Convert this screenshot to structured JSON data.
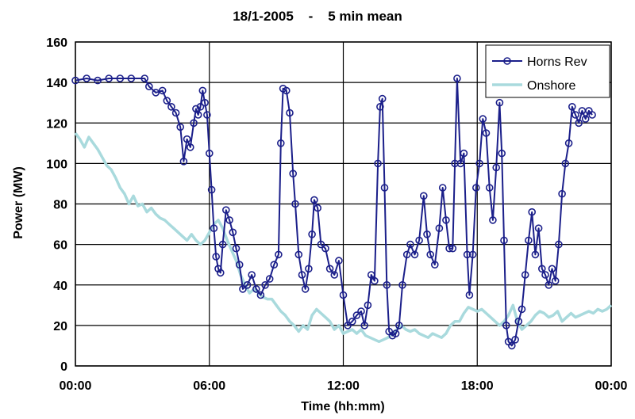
{
  "chart_data": {
    "type": "line",
    "title": "18/1-2005    -    5 min mean",
    "xlabel": "Time (hh:mm)",
    "ylabel": "Power (MW)",
    "xlim": [
      0,
      24
    ],
    "ylim": [
      0,
      160
    ],
    "x_ticks": [
      {
        "value": 0,
        "label": "00:00"
      },
      {
        "value": 6,
        "label": "06:00"
      },
      {
        "value": 12,
        "label": "12:00"
      },
      {
        "value": 18,
        "label": "18:00"
      },
      {
        "value": 24,
        "label": "00:00"
      }
    ],
    "y_ticks": [
      0,
      20,
      40,
      60,
      80,
      100,
      120,
      140,
      160
    ],
    "grid": true,
    "legend_position": "top-right",
    "series": [
      {
        "name": "Horns Rev",
        "color": "#1b1f8a",
        "marker": "circle",
        "points": [
          [
            0.0,
            141
          ],
          [
            0.5,
            142
          ],
          [
            1.0,
            141
          ],
          [
            1.5,
            142
          ],
          [
            2.0,
            142
          ],
          [
            2.5,
            142
          ],
          [
            3.1,
            142
          ],
          [
            3.3,
            138
          ],
          [
            3.6,
            135
          ],
          [
            3.9,
            136
          ],
          [
            4.1,
            131
          ],
          [
            4.3,
            128
          ],
          [
            4.5,
            125
          ],
          [
            4.7,
            118
          ],
          [
            4.85,
            101
          ],
          [
            5.0,
            112
          ],
          [
            5.15,
            108
          ],
          [
            5.3,
            120
          ],
          [
            5.4,
            127
          ],
          [
            5.5,
            124
          ],
          [
            5.6,
            128
          ],
          [
            5.7,
            136
          ],
          [
            5.8,
            130
          ],
          [
            5.9,
            124
          ],
          [
            6.0,
            105
          ],
          [
            6.1,
            87
          ],
          [
            6.2,
            68
          ],
          [
            6.3,
            54
          ],
          [
            6.4,
            48
          ],
          [
            6.5,
            46
          ],
          [
            6.6,
            60
          ],
          [
            6.75,
            77
          ],
          [
            6.9,
            72
          ],
          [
            7.05,
            66
          ],
          [
            7.2,
            58
          ],
          [
            7.35,
            50
          ],
          [
            7.5,
            38
          ],
          [
            7.7,
            40
          ],
          [
            7.9,
            45
          ],
          [
            8.1,
            38
          ],
          [
            8.3,
            35
          ],
          [
            8.5,
            40
          ],
          [
            8.7,
            43
          ],
          [
            8.9,
            50
          ],
          [
            9.1,
            55
          ],
          [
            9.2,
            110
          ],
          [
            9.3,
            137
          ],
          [
            9.45,
            136
          ],
          [
            9.6,
            125
          ],
          [
            9.75,
            95
          ],
          [
            9.85,
            80
          ],
          [
            10.0,
            55
          ],
          [
            10.15,
            45
          ],
          [
            10.3,
            38
          ],
          [
            10.45,
            48
          ],
          [
            10.6,
            65
          ],
          [
            10.7,
            82
          ],
          [
            10.85,
            78
          ],
          [
            11.0,
            60
          ],
          [
            11.2,
            58
          ],
          [
            11.4,
            48
          ],
          [
            11.6,
            45
          ],
          [
            11.8,
            52
          ],
          [
            12.0,
            35
          ],
          [
            12.2,
            20
          ],
          [
            12.4,
            22
          ],
          [
            12.6,
            25
          ],
          [
            12.8,
            27
          ],
          [
            12.95,
            20
          ],
          [
            13.1,
            30
          ],
          [
            13.25,
            45
          ],
          [
            13.4,
            42
          ],
          [
            13.55,
            100
          ],
          [
            13.65,
            128
          ],
          [
            13.75,
            132
          ],
          [
            13.85,
            88
          ],
          [
            13.95,
            40
          ],
          [
            14.05,
            17
          ],
          [
            14.2,
            15
          ],
          [
            14.35,
            16
          ],
          [
            14.5,
            20
          ],
          [
            14.65,
            40
          ],
          [
            14.85,
            55
          ],
          [
            15.0,
            60
          ],
          [
            15.2,
            55
          ],
          [
            15.4,
            62
          ],
          [
            15.6,
            84
          ],
          [
            15.75,
            65
          ],
          [
            15.9,
            55
          ],
          [
            16.1,
            50
          ],
          [
            16.3,
            68
          ],
          [
            16.45,
            88
          ],
          [
            16.6,
            72
          ],
          [
            16.75,
            58
          ],
          [
            16.9,
            58
          ],
          [
            17.0,
            100
          ],
          [
            17.1,
            142
          ],
          [
            17.25,
            100
          ],
          [
            17.4,
            105
          ],
          [
            17.55,
            55
          ],
          [
            17.65,
            35
          ],
          [
            17.8,
            55
          ],
          [
            17.95,
            88
          ],
          [
            18.1,
            100
          ],
          [
            18.25,
            122
          ],
          [
            18.4,
            115
          ],
          [
            18.55,
            88
          ],
          [
            18.7,
            72
          ],
          [
            18.85,
            98
          ],
          [
            19.0,
            130
          ],
          [
            19.1,
            105
          ],
          [
            19.2,
            62
          ],
          [
            19.3,
            20
          ],
          [
            19.4,
            12
          ],
          [
            19.55,
            10
          ],
          [
            19.7,
            13
          ],
          [
            19.85,
            22
          ],
          [
            20.0,
            28
          ],
          [
            20.15,
            45
          ],
          [
            20.3,
            62
          ],
          [
            20.45,
            76
          ],
          [
            20.6,
            55
          ],
          [
            20.75,
            68
          ],
          [
            20.9,
            48
          ],
          [
            21.05,
            45
          ],
          [
            21.2,
            40
          ],
          [
            21.35,
            48
          ],
          [
            21.5,
            42
          ],
          [
            21.65,
            60
          ],
          [
            21.8,
            85
          ],
          [
            21.95,
            100
          ],
          [
            22.1,
            110
          ],
          [
            22.25,
            128
          ],
          [
            22.4,
            124
          ],
          [
            22.55,
            120
          ],
          [
            22.7,
            126
          ],
          [
            22.85,
            122
          ],
          [
            23.0,
            126
          ],
          [
            23.15,
            124
          ]
        ]
      },
      {
        "name": "Onshore",
        "color": "#a9dadd",
        "marker": "none",
        "points": [
          [
            0.0,
            115
          ],
          [
            0.2,
            112
          ],
          [
            0.4,
            108
          ],
          [
            0.6,
            113
          ],
          [
            0.8,
            110
          ],
          [
            1.0,
            107
          ],
          [
            1.2,
            103
          ],
          [
            1.4,
            99
          ],
          [
            1.6,
            97
          ],
          [
            1.8,
            93
          ],
          [
            2.0,
            88
          ],
          [
            2.2,
            85
          ],
          [
            2.4,
            80
          ],
          [
            2.6,
            84
          ],
          [
            2.8,
            79
          ],
          [
            3.0,
            80
          ],
          [
            3.2,
            76
          ],
          [
            3.4,
            78
          ],
          [
            3.6,
            75
          ],
          [
            3.8,
            73
          ],
          [
            4.0,
            72
          ],
          [
            4.2,
            70
          ],
          [
            4.4,
            68
          ],
          [
            4.6,
            66
          ],
          [
            4.8,
            64
          ],
          [
            5.0,
            62
          ],
          [
            5.2,
            65
          ],
          [
            5.4,
            62
          ],
          [
            5.6,
            60
          ],
          [
            5.8,
            62
          ],
          [
            6.0,
            66
          ],
          [
            6.2,
            70
          ],
          [
            6.4,
            72
          ],
          [
            6.6,
            68
          ],
          [
            6.8,
            62
          ],
          [
            7.0,
            57
          ],
          [
            7.2,
            52
          ],
          [
            7.4,
            45
          ],
          [
            7.6,
            40
          ],
          [
            7.8,
            36
          ],
          [
            8.0,
            38
          ],
          [
            8.2,
            36
          ],
          [
            8.4,
            34
          ],
          [
            8.6,
            33
          ],
          [
            8.8,
            33
          ],
          [
            9.0,
            30
          ],
          [
            9.2,
            27
          ],
          [
            9.4,
            25
          ],
          [
            9.6,
            22
          ],
          [
            9.8,
            20
          ],
          [
            10.0,
            17
          ],
          [
            10.2,
            20
          ],
          [
            10.4,
            18
          ],
          [
            10.6,
            25
          ],
          [
            10.8,
            28
          ],
          [
            11.0,
            26
          ],
          [
            11.2,
            24
          ],
          [
            11.4,
            22
          ],
          [
            11.6,
            18
          ],
          [
            11.8,
            20
          ],
          [
            12.0,
            16
          ],
          [
            12.2,
            17
          ],
          [
            12.4,
            18
          ],
          [
            12.6,
            16
          ],
          [
            12.8,
            18
          ],
          [
            13.0,
            15
          ],
          [
            13.2,
            14
          ],
          [
            13.4,
            13
          ],
          [
            13.6,
            12
          ],
          [
            13.8,
            13
          ],
          [
            14.0,
            14
          ],
          [
            14.2,
            16
          ],
          [
            14.4,
            18
          ],
          [
            14.6,
            20
          ],
          [
            14.8,
            18
          ],
          [
            15.0,
            17
          ],
          [
            15.2,
            18
          ],
          [
            15.4,
            16
          ],
          [
            15.6,
            15
          ],
          [
            15.8,
            14
          ],
          [
            16.0,
            16
          ],
          [
            16.2,
            15
          ],
          [
            16.4,
            14
          ],
          [
            16.6,
            16
          ],
          [
            16.8,
            20
          ],
          [
            17.0,
            22
          ],
          [
            17.2,
            22
          ],
          [
            17.4,
            26
          ],
          [
            17.6,
            29
          ],
          [
            17.8,
            28
          ],
          [
            18.0,
            27
          ],
          [
            18.2,
            28
          ],
          [
            18.4,
            26
          ],
          [
            18.6,
            24
          ],
          [
            18.8,
            22
          ],
          [
            19.0,
            20
          ],
          [
            19.2,
            22
          ],
          [
            19.4,
            25
          ],
          [
            19.6,
            30
          ],
          [
            19.8,
            22
          ],
          [
            20.0,
            18
          ],
          [
            20.2,
            20
          ],
          [
            20.4,
            22
          ],
          [
            20.6,
            25
          ],
          [
            20.8,
            27
          ],
          [
            21.0,
            26
          ],
          [
            21.2,
            24
          ],
          [
            21.4,
            25
          ],
          [
            21.6,
            27
          ],
          [
            21.8,
            22
          ],
          [
            22.0,
            24
          ],
          [
            22.2,
            26
          ],
          [
            22.4,
            24
          ],
          [
            22.6,
            25
          ],
          [
            22.8,
            26
          ],
          [
            23.0,
            27
          ],
          [
            23.2,
            26
          ],
          [
            23.4,
            28
          ],
          [
            23.6,
            27
          ],
          [
            23.8,
            28
          ],
          [
            24.0,
            30
          ]
        ]
      }
    ]
  }
}
